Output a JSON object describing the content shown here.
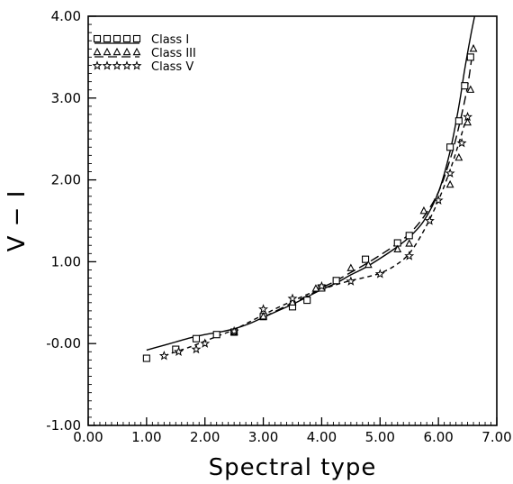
{
  "chart_data": {
    "type": "scatter",
    "xlabel": "Spectral type",
    "ylabel": "V − I",
    "xlim": [
      0.0,
      7.0
    ],
    "ylim": [
      -1.0,
      4.0
    ],
    "x_ticks": [
      "0.00",
      "1.00",
      "2.00",
      "3.00",
      "4.00",
      "5.00",
      "6.00",
      "7.00"
    ],
    "y_ticks": [
      "-1.00",
      "-0.00",
      "1.00",
      "2.00",
      "3.00",
      "4.00"
    ],
    "legend_position": "top-left",
    "grid": false,
    "series": [
      {
        "name": "Class  I",
        "marker": "square",
        "line": "solid",
        "points": [
          [
            1.0,
            -0.18
          ],
          [
            1.5,
            -0.07
          ],
          [
            1.85,
            0.06
          ],
          [
            2.2,
            0.11
          ],
          [
            2.5,
            0.14
          ],
          [
            3.0,
            0.33
          ],
          [
            3.5,
            0.45
          ],
          [
            3.75,
            0.53
          ],
          [
            4.0,
            0.68
          ],
          [
            4.25,
            0.77
          ],
          [
            4.75,
            1.03
          ],
          [
            5.3,
            1.23
          ],
          [
            5.5,
            1.32
          ],
          [
            6.2,
            2.4
          ],
          [
            6.35,
            2.72
          ],
          [
            6.45,
            3.15
          ],
          [
            6.55,
            3.5
          ]
        ],
        "curve": [
          [
            1.0,
            -0.08
          ],
          [
            1.25,
            -0.03
          ],
          [
            1.5,
            0.02
          ],
          [
            1.75,
            0.07
          ],
          [
            2.0,
            0.11
          ],
          [
            2.25,
            0.14
          ],
          [
            2.5,
            0.18
          ],
          [
            2.75,
            0.24
          ],
          [
            3.0,
            0.32
          ],
          [
            3.25,
            0.4
          ],
          [
            3.5,
            0.48
          ],
          [
            3.75,
            0.57
          ],
          [
            4.0,
            0.66
          ],
          [
            4.25,
            0.74
          ],
          [
            4.5,
            0.84
          ],
          [
            4.75,
            0.93
          ],
          [
            5.0,
            1.04
          ],
          [
            5.25,
            1.16
          ],
          [
            5.5,
            1.3
          ],
          [
            5.75,
            1.5
          ],
          [
            6.0,
            1.85
          ],
          [
            6.2,
            2.35
          ],
          [
            6.35,
            2.9
          ],
          [
            6.45,
            3.35
          ],
          [
            6.55,
            3.75
          ],
          [
            6.62,
            4.0
          ]
        ]
      },
      {
        "name": "Class  III",
        "marker": "triangle",
        "line": "long-dash",
        "points": [
          [
            2.5,
            0.14
          ],
          [
            3.0,
            0.33
          ],
          [
            3.5,
            0.5
          ],
          [
            3.9,
            0.67
          ],
          [
            4.5,
            0.92
          ],
          [
            4.8,
            0.96
          ],
          [
            5.3,
            1.15
          ],
          [
            5.5,
            1.22
          ],
          [
            5.75,
            1.62
          ],
          [
            6.2,
            1.94
          ],
          [
            6.35,
            2.27
          ],
          [
            6.5,
            2.7
          ],
          [
            6.55,
            3.1
          ],
          [
            6.6,
            3.6
          ]
        ],
        "curve": [
          [
            3.0,
            0.32
          ],
          [
            3.25,
            0.41
          ],
          [
            3.5,
            0.5
          ],
          [
            3.75,
            0.58
          ],
          [
            4.0,
            0.68
          ],
          [
            4.25,
            0.77
          ],
          [
            4.5,
            0.87
          ],
          [
            4.75,
            0.97
          ],
          [
            5.0,
            1.08
          ],
          [
            5.25,
            1.2
          ],
          [
            5.5,
            1.34
          ],
          [
            5.75,
            1.55
          ],
          [
            6.0,
            1.85
          ],
          [
            6.2,
            2.25
          ],
          [
            6.35,
            2.65
          ],
          [
            6.5,
            3.15
          ],
          [
            6.6,
            3.65
          ]
        ]
      },
      {
        "name": "Class  V",
        "marker": "star",
        "line": "short-dash",
        "points": [
          [
            1.3,
            -0.15
          ],
          [
            1.55,
            -0.1
          ],
          [
            1.85,
            -0.07
          ],
          [
            2.0,
            0.0
          ],
          [
            2.5,
            0.15
          ],
          [
            3.0,
            0.42
          ],
          [
            3.5,
            0.55
          ],
          [
            4.0,
            0.7
          ],
          [
            4.5,
            0.76
          ],
          [
            5.0,
            0.85
          ],
          [
            5.5,
            1.07
          ],
          [
            5.85,
            1.5
          ],
          [
            6.0,
            1.75
          ],
          [
            6.2,
            2.08
          ],
          [
            6.4,
            2.45
          ],
          [
            6.5,
            2.77
          ]
        ],
        "curve": [
          [
            1.3,
            -0.15
          ],
          [
            1.5,
            -0.1
          ],
          [
            1.75,
            -0.04
          ],
          [
            2.0,
            0.03
          ],
          [
            2.25,
            0.1
          ],
          [
            2.5,
            0.17
          ],
          [
            2.75,
            0.26
          ],
          [
            3.0,
            0.35
          ],
          [
            3.25,
            0.44
          ],
          [
            3.5,
            0.52
          ],
          [
            3.75,
            0.6
          ],
          [
            4.0,
            0.66
          ],
          [
            4.25,
            0.72
          ],
          [
            4.5,
            0.77
          ],
          [
            4.75,
            0.81
          ],
          [
            5.0,
            0.86
          ],
          [
            5.25,
            0.95
          ],
          [
            5.5,
            1.1
          ],
          [
            5.75,
            1.38
          ],
          [
            6.0,
            1.75
          ],
          [
            6.2,
            2.12
          ],
          [
            6.35,
            2.45
          ],
          [
            6.5,
            2.8
          ]
        ]
      }
    ]
  }
}
